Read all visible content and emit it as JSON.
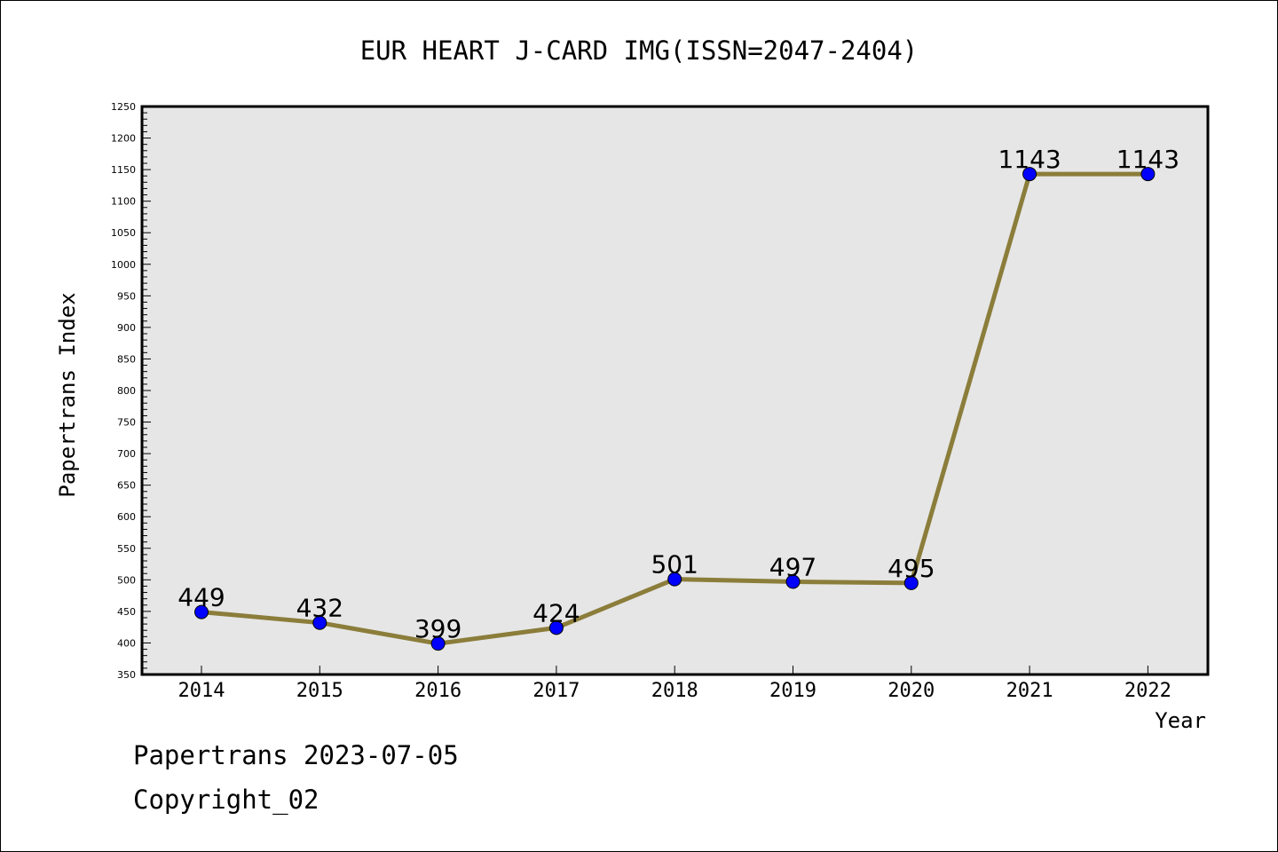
{
  "chart_data": {
    "type": "line",
    "title": "EUR HEART J-CARD IMG(ISSN=2047-2404)",
    "xlabel": "Year",
    "ylabel": "Papertrans Index",
    "categories": [
      "2014",
      "2015",
      "2016",
      "2017",
      "2018",
      "2019",
      "2020",
      "2021",
      "2022"
    ],
    "series": [
      {
        "values": [
          449,
          432,
          399,
          424,
          501,
          497,
          495,
          1143,
          1143
        ]
      }
    ],
    "ylim": [
      350,
      1250
    ],
    "yticks": [
      350,
      400,
      450,
      500,
      550,
      600,
      650,
      700,
      750,
      800,
      850,
      900,
      950,
      1000,
      1050,
      1100,
      1150,
      1200,
      1250
    ],
    "data_labels": [
      "449",
      "432",
      "399",
      "424",
      "501",
      "497",
      "495",
      "1143",
      "1143"
    ],
    "grid": false,
    "line_color": "#8b7d3a",
    "marker_color": "#0000ff",
    "plot_background": "#e6e6e6"
  },
  "footer": {
    "line1": "Papertrans 2023-07-05",
    "line2": "Copyright_02"
  }
}
